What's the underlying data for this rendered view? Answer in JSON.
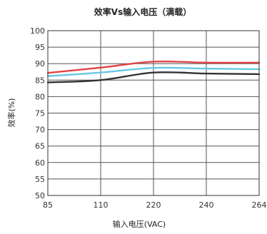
{
  "chart_data": {
    "type": "line",
    "title": "效率Vs输入电压（满载）",
    "xlabel": "输入电压(VAC)",
    "ylabel": "效率(%)",
    "categories": [
      "85",
      "110",
      "220",
      "240",
      "264"
    ],
    "ylim": [
      50,
      100
    ],
    "yticks": [
      50,
      55,
      60,
      65,
      70,
      75,
      80,
      85,
      90,
      95,
      100
    ],
    "grid": "vertical",
    "series": [
      {
        "color": "#e04545",
        "values": [
          87.2,
          88.8,
          90.6,
          90.3,
          90.3
        ]
      },
      {
        "color": "#66c9e3",
        "values": [
          86.2,
          87.3,
          88.7,
          88.5,
          88.3
        ]
      },
      {
        "color": "#333333",
        "values": [
          84.3,
          85.0,
          87.3,
          87.0,
          86.8
        ]
      }
    ]
  }
}
